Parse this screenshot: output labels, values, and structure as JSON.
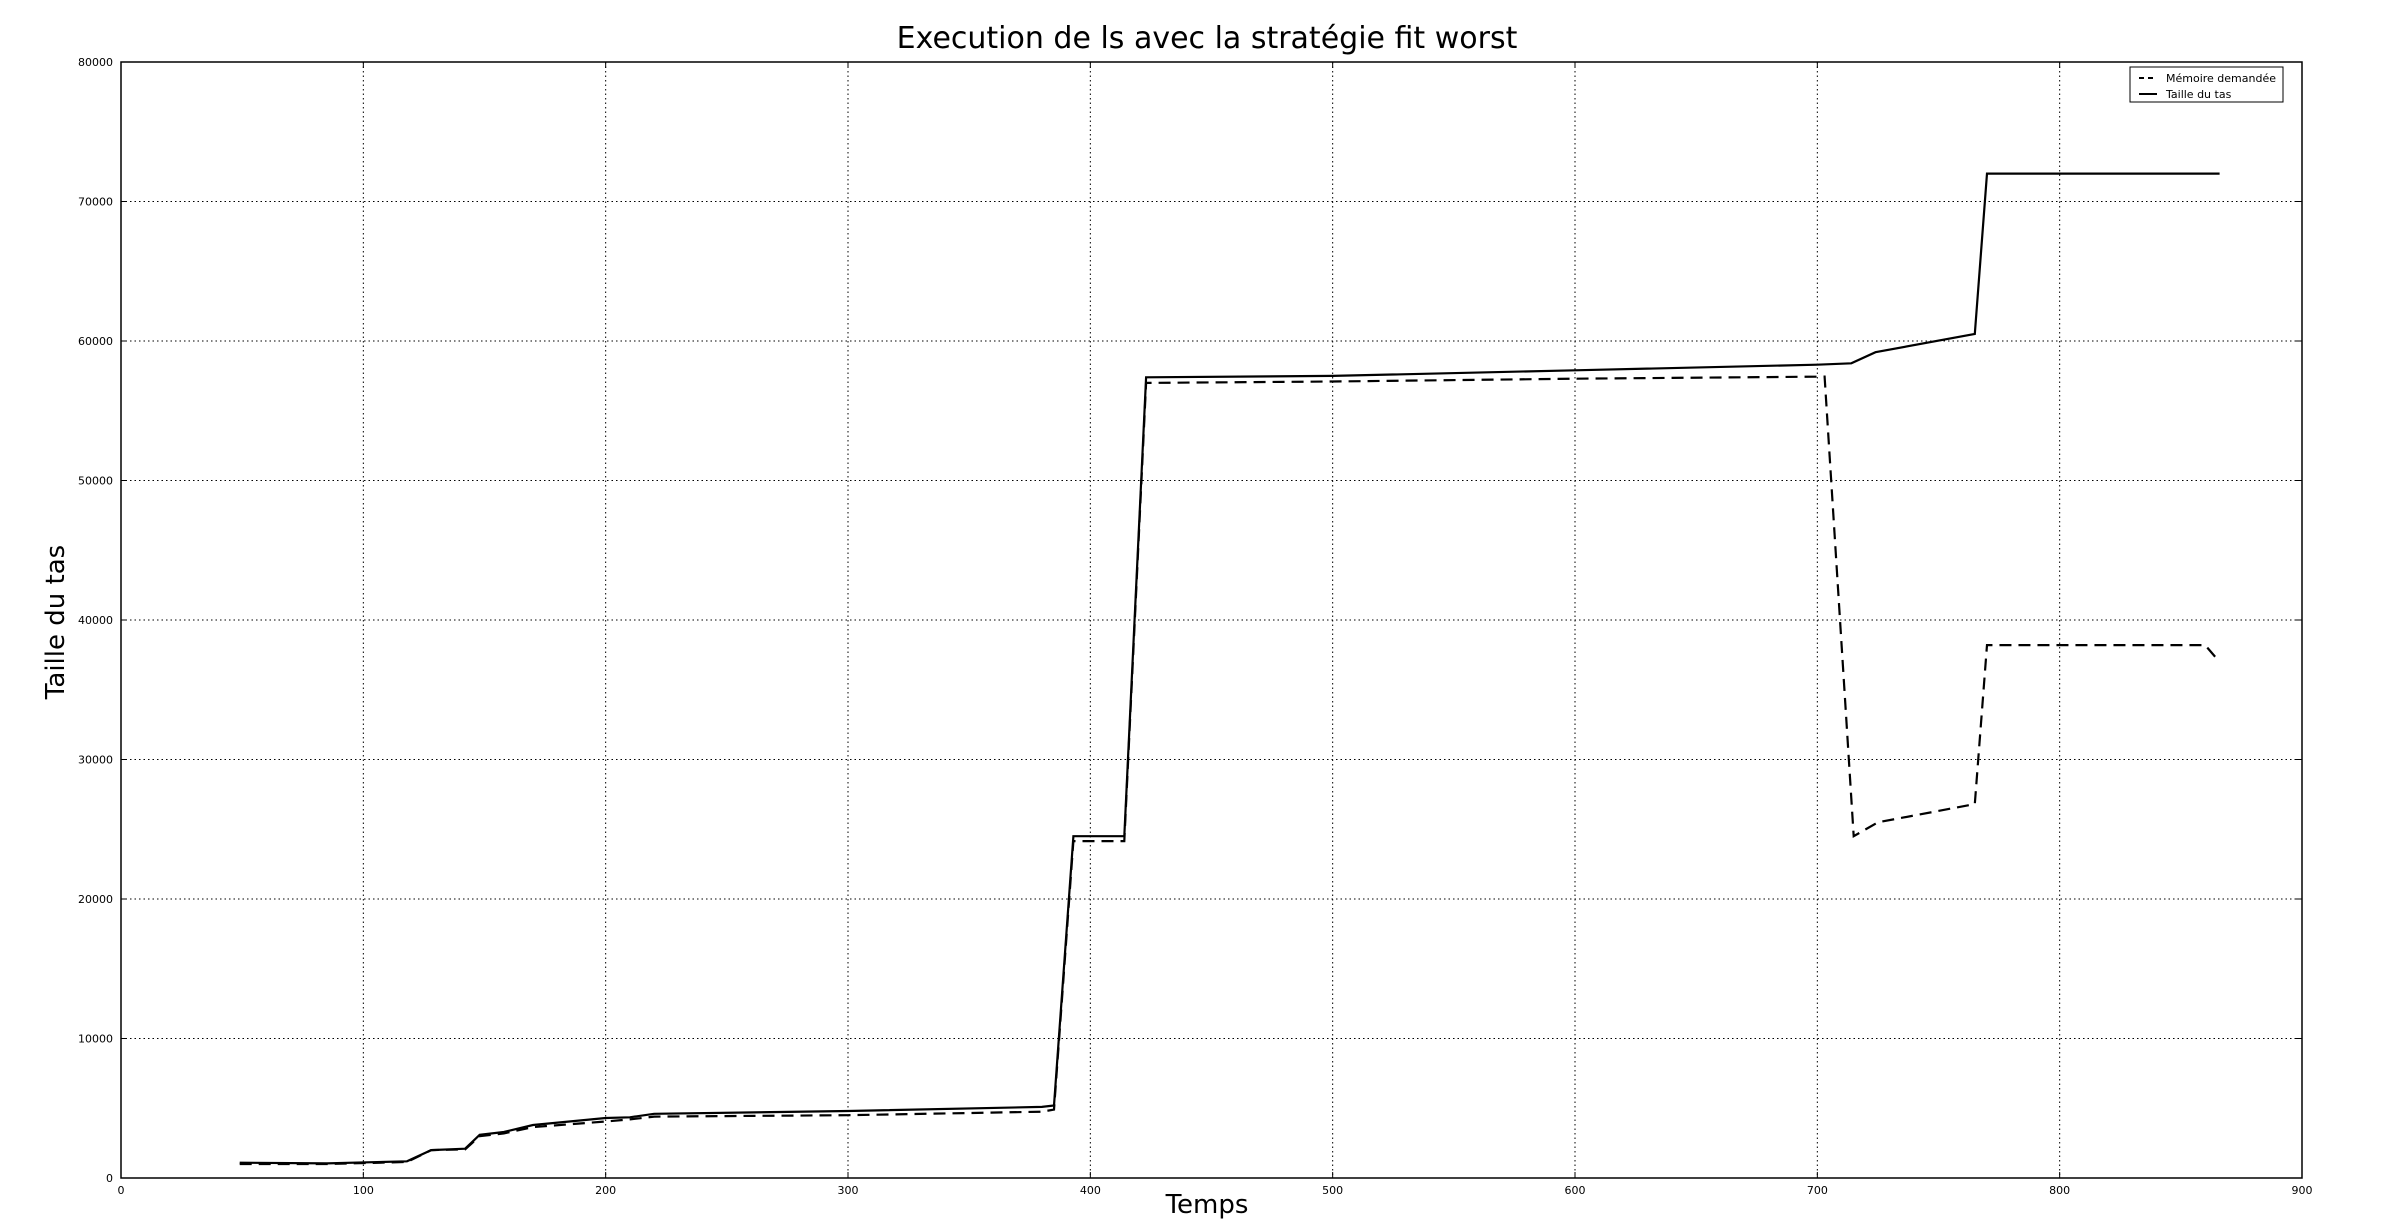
{
  "chart_data": {
    "type": "line",
    "title": "Execution de ls avec la stratégie fit worst",
    "xlabel": "Temps",
    "ylabel": "Taille du tas",
    "xlim": [
      0,
      900
    ],
    "ylim": [
      0,
      80000
    ],
    "x_ticks": [
      0,
      100,
      200,
      300,
      400,
      500,
      600,
      700,
      800,
      900
    ],
    "y_ticks": [
      0,
      10000,
      20000,
      30000,
      40000,
      50000,
      60000,
      70000,
      80000
    ],
    "x_tick_labels": [
      "0",
      "100",
      "200",
      "300",
      "400",
      "500",
      "600",
      "700",
      "800",
      "900"
    ],
    "y_tick_labels": [
      "0",
      "10000",
      "20000",
      "30000",
      "40000",
      "50000",
      "60000",
      "70000",
      "80000"
    ],
    "grid": true,
    "legend_position": "top-right",
    "series": [
      {
        "name": "Mémoire demandée",
        "style": "dashed",
        "color": "#000000",
        "points": [
          [
            49,
            1000
          ],
          [
            85,
            1000
          ],
          [
            118,
            1150
          ],
          [
            128,
            2000
          ],
          [
            142,
            2050
          ],
          [
            148,
            3000
          ],
          [
            158,
            3200
          ],
          [
            170,
            3650
          ],
          [
            200,
            4050
          ],
          [
            210,
            4200
          ],
          [
            220,
            4400
          ],
          [
            300,
            4500
          ],
          [
            380,
            4750
          ],
          [
            385,
            4900
          ],
          [
            393,
            24150
          ],
          [
            414,
            24150
          ],
          [
            423,
            57000
          ],
          [
            500,
            57100
          ],
          [
            600,
            57300
          ],
          [
            703,
            57450
          ],
          [
            715,
            24500
          ],
          [
            725,
            25500
          ],
          [
            765,
            26800
          ],
          [
            770,
            38200
          ],
          [
            860,
            38200
          ],
          [
            866,
            37000
          ]
        ]
      },
      {
        "name": "Taille du tas",
        "style": "solid",
        "color": "#000000",
        "points": [
          [
            49,
            1100
          ],
          [
            85,
            1050
          ],
          [
            118,
            1200
          ],
          [
            128,
            2000
          ],
          [
            142,
            2100
          ],
          [
            148,
            3100
          ],
          [
            158,
            3300
          ],
          [
            170,
            3800
          ],
          [
            200,
            4300
          ],
          [
            210,
            4350
          ],
          [
            220,
            4600
          ],
          [
            300,
            4800
          ],
          [
            380,
            5100
          ],
          [
            385,
            5200
          ],
          [
            393,
            24500
          ],
          [
            414,
            24500
          ],
          [
            423,
            57400
          ],
          [
            500,
            57500
          ],
          [
            600,
            57900
          ],
          [
            700,
            58300
          ],
          [
            714,
            58400
          ],
          [
            724,
            59200
          ],
          [
            765,
            60500
          ],
          [
            770,
            72000
          ],
          [
            866,
            72000
          ]
        ]
      }
    ]
  }
}
